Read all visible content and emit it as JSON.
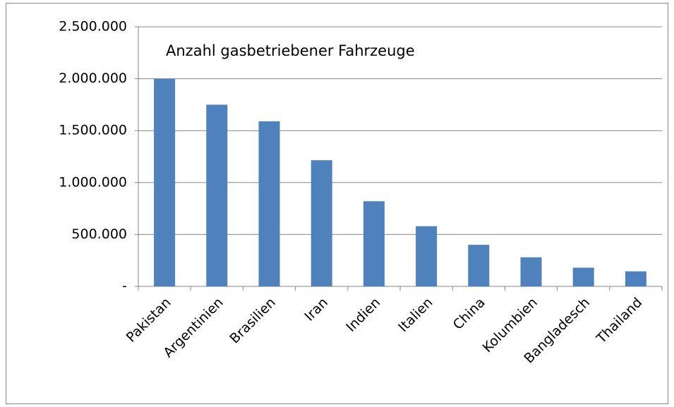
{
  "chart_data": {
    "type": "bar",
    "title": "Anzahl gasbetriebener Fahrzeuge",
    "categories": [
      "Pakistan",
      "Argentinien",
      "Brasilien",
      "Iran",
      "Indien",
      "Italien",
      "China",
      "Kolumbien",
      "Bangladesch",
      "Thailand"
    ],
    "values": [
      2000000,
      1750000,
      1590000,
      1215000,
      820000,
      580000,
      400000,
      280000,
      180000,
      145000
    ],
    "color": "#4f81bd",
    "ylim": [
      0,
      2500000
    ],
    "yticks": [
      {
        "value": 0,
        "label": "-"
      },
      {
        "value": 500000,
        "label": "500.000"
      },
      {
        "value": 1000000,
        "label": "1.000.000"
      },
      {
        "value": 1500000,
        "label": "1.500.000"
      },
      {
        "value": 2000000,
        "label": "2.000.000"
      },
      {
        "value": 2500000,
        "label": "2.500.000"
      }
    ],
    "grid": true
  }
}
